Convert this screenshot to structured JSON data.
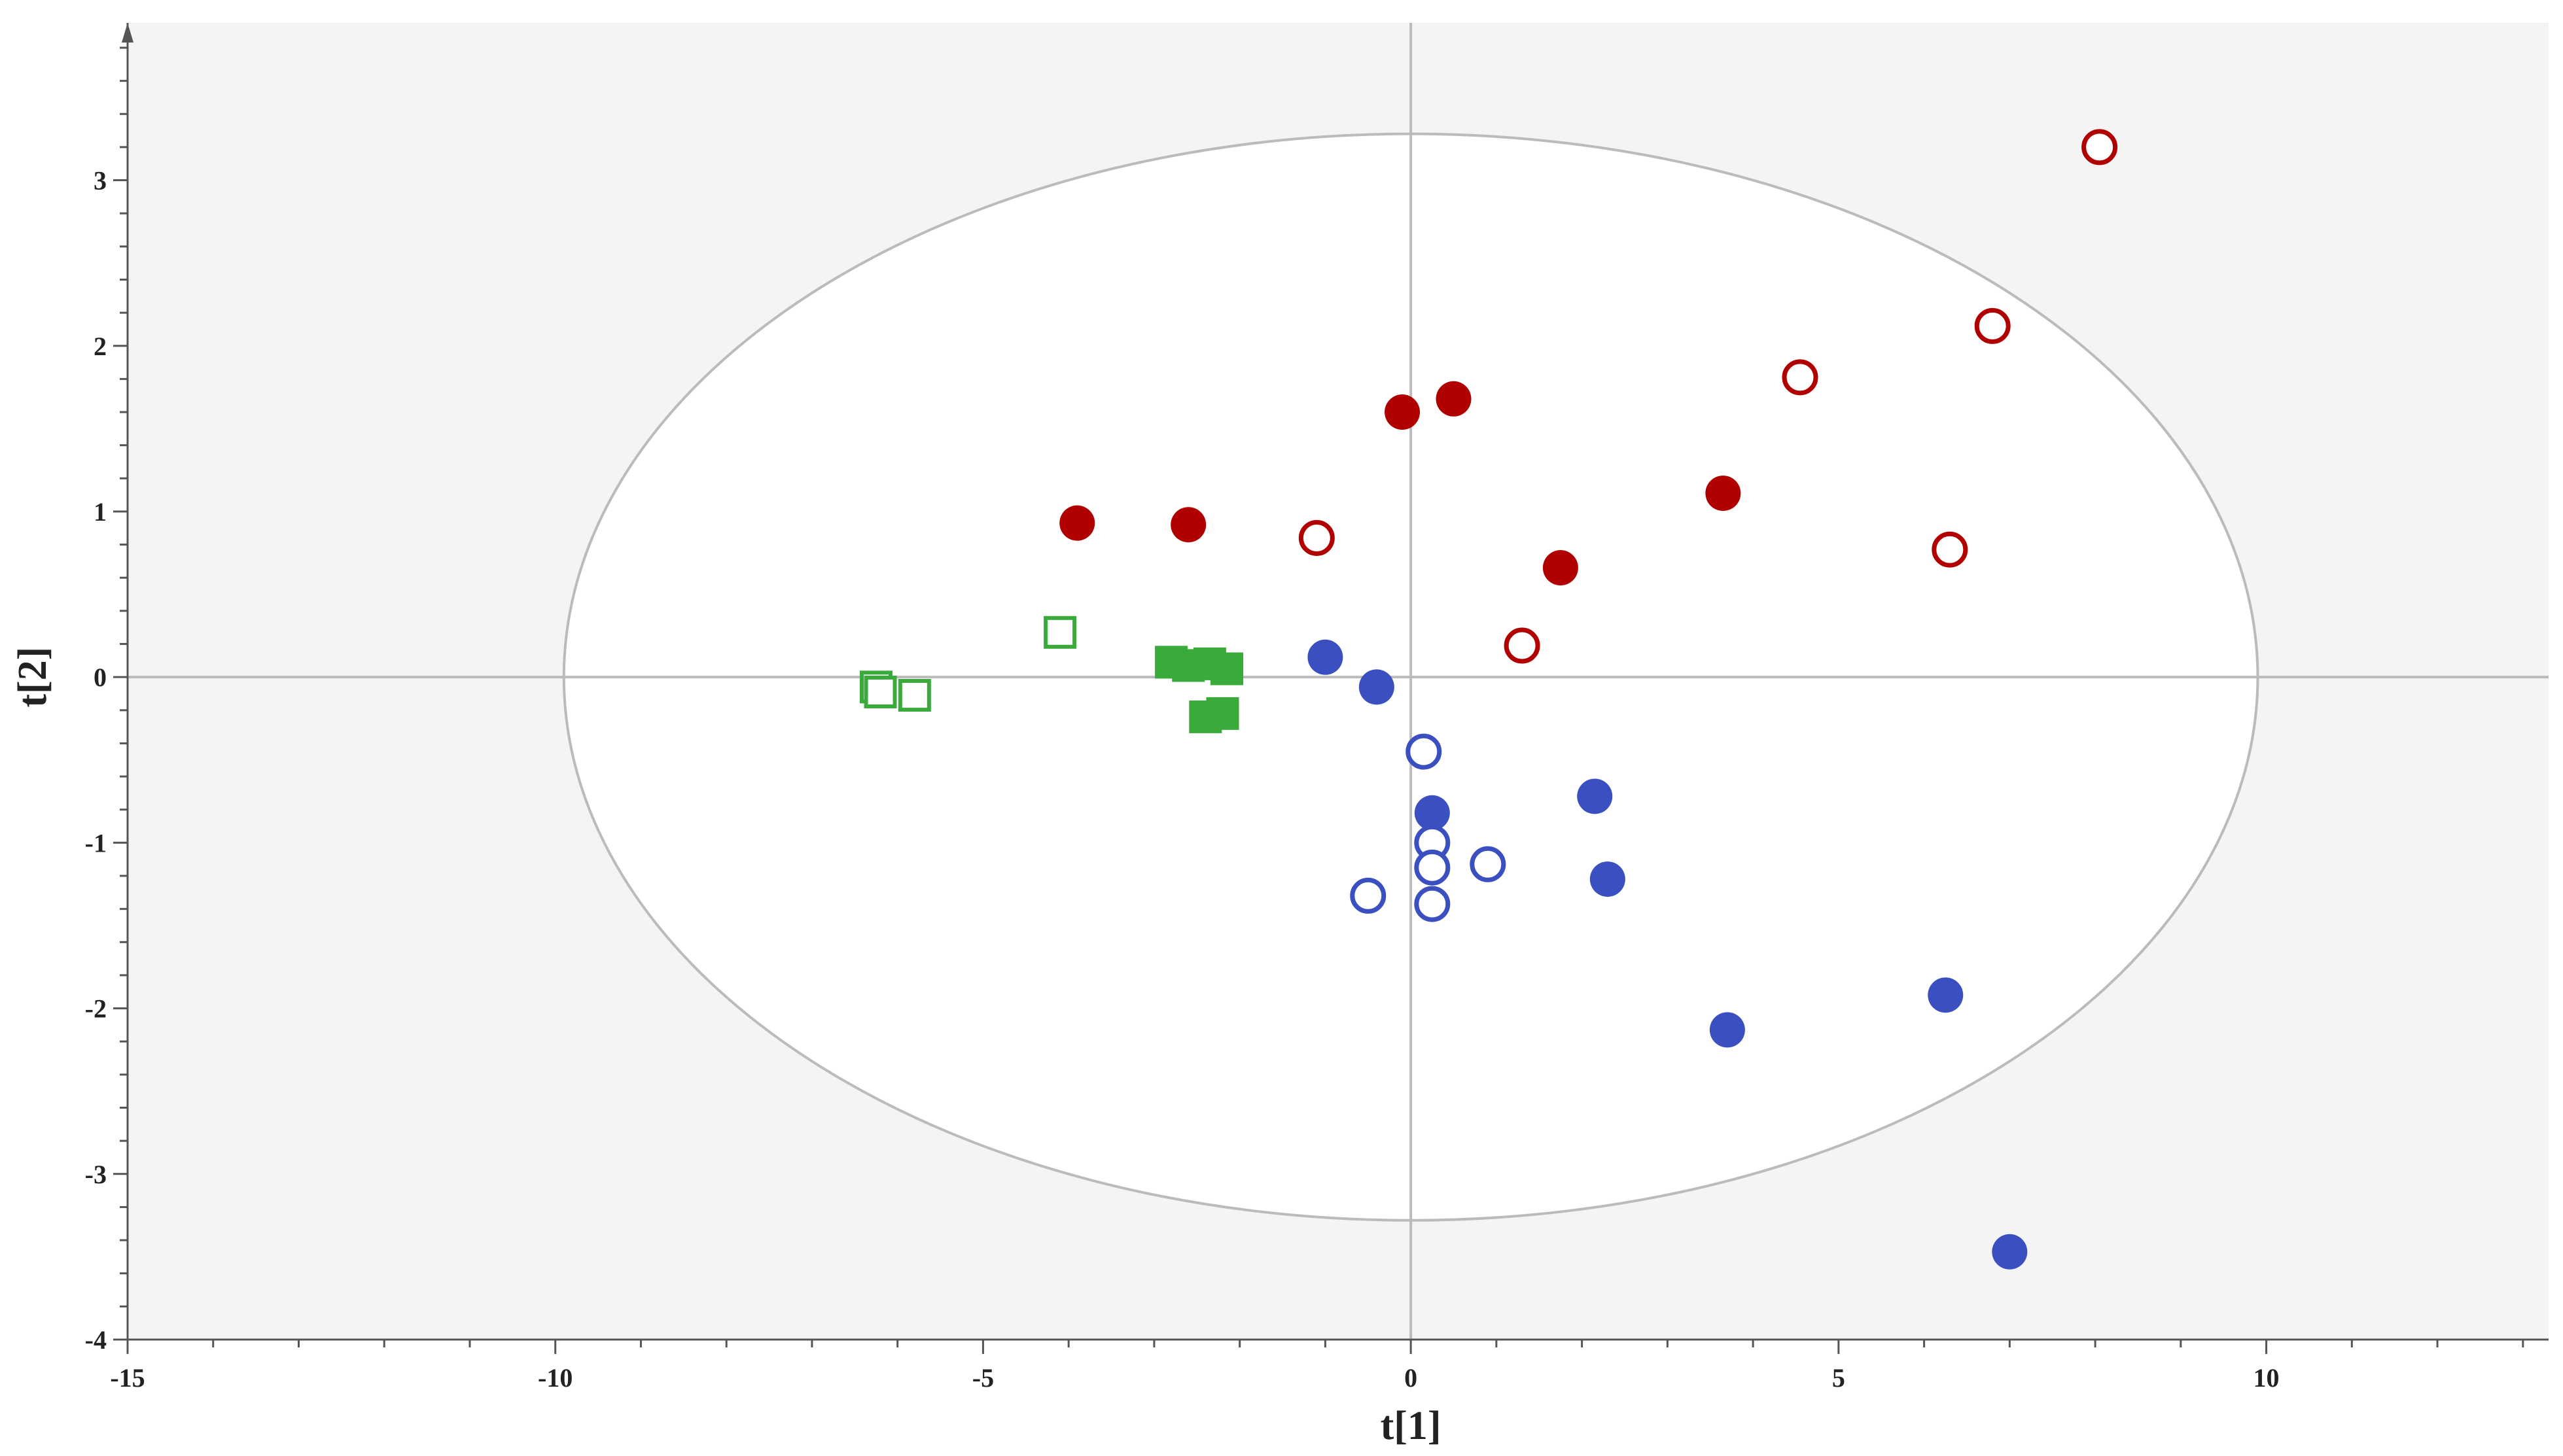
{
  "chart_data": {
    "type": "scatter",
    "title": "",
    "xlabel": "t[1]",
    "ylabel": "t[2]",
    "xlim": [
      -15,
      13.3
    ],
    "ylim": [
      -4,
      3.95
    ],
    "x_ticks": [
      "-15",
      "-10",
      "-5",
      "0",
      "5",
      "10"
    ],
    "y_ticks": [
      "-4",
      "-3",
      "-2",
      "-1",
      "0",
      "1",
      "2",
      "3"
    ],
    "grid": false,
    "legend": "none",
    "ellipse": {
      "center": [
        0,
        0
      ],
      "semi_axis_x": 9.9,
      "semi_axis_y": 3.28
    },
    "colors": {
      "red": "#b00000",
      "blue": "#3a4fc0",
      "green": "#3aaa3a",
      "plot_background": "#f4f4f4",
      "ellipse_fill": "#ffffff",
      "ellipse_stroke": "#bbbbbb",
      "axis": "#555555"
    },
    "series": [
      {
        "marker": "circle-filled",
        "color": "#b00000",
        "points": [
          [
            -3.9,
            0.93
          ],
          [
            -2.6,
            0.92
          ],
          [
            -0.1,
            1.6
          ],
          [
            0.5,
            1.68
          ],
          [
            1.75,
            0.66
          ],
          [
            3.65,
            1.11
          ]
        ]
      },
      {
        "marker": "circle-open",
        "color": "#b00000",
        "points": [
          [
            8.05,
            3.2
          ],
          [
            6.8,
            2.12
          ],
          [
            4.55,
            1.81
          ],
          [
            6.3,
            0.77
          ],
          [
            -1.1,
            0.84
          ],
          [
            1.3,
            0.19
          ]
        ]
      },
      {
        "marker": "circle-filled",
        "color": "#3a4fc0",
        "points": [
          [
            -1.0,
            0.12
          ],
          [
            -0.4,
            -0.06
          ],
          [
            0.25,
            -0.82
          ],
          [
            2.15,
            -0.72
          ],
          [
            2.3,
            -1.22
          ],
          [
            3.7,
            -2.13
          ],
          [
            6.25,
            -1.92
          ],
          [
            7.0,
            -3.47
          ]
        ]
      },
      {
        "marker": "circle-open",
        "color": "#3a4fc0",
        "points": [
          [
            0.15,
            -0.45
          ],
          [
            0.25,
            -1.0
          ],
          [
            0.25,
            -1.15
          ],
          [
            0.9,
            -1.13
          ],
          [
            -0.5,
            -1.32
          ],
          [
            0.25,
            -1.37
          ]
        ]
      },
      {
        "marker": "square-filled",
        "color": "#3aaa3a",
        "points": [
          [
            -2.8,
            0.09
          ],
          [
            -2.6,
            0.07
          ],
          [
            -2.35,
            0.08
          ],
          [
            -2.15,
            0.05
          ],
          [
            -2.4,
            -0.24
          ],
          [
            -2.2,
            -0.22
          ]
        ]
      },
      {
        "marker": "square-open",
        "color": "#3aaa3a",
        "points": [
          [
            -4.1,
            0.27
          ],
          [
            -6.25,
            -0.06
          ],
          [
            -6.2,
            -0.09
          ],
          [
            -5.8,
            -0.11
          ]
        ]
      }
    ]
  }
}
